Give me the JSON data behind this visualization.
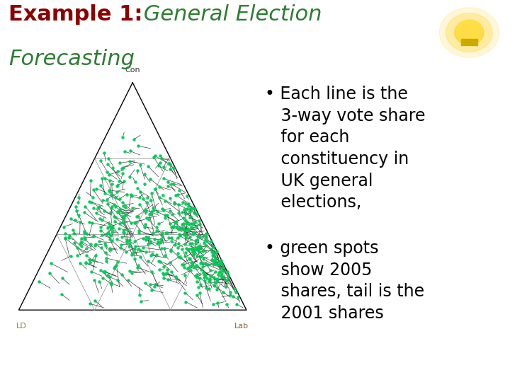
{
  "title_bold": "Example 1:",
  "title_italic_line1": " General Election",
  "title_italic_line2": "Forecasting",
  "title_bold_color": "#8B0000",
  "title_italic_color": "#2E7D32",
  "bg_color": "#ffffff",
  "triangle_color": "#000000",
  "grid_color": "#888888",
  "line_color": "#111111",
  "dot_color": "#00cc55",
  "con_label_color": "#333333",
  "ld_label_color": "#888833",
  "lab_label_color": "#886633",
  "bullet_color": "#000000",
  "bullet_fontsize": 17,
  "title_fontsize": 22,
  "n_constituencies": 550,
  "seed": 42
}
